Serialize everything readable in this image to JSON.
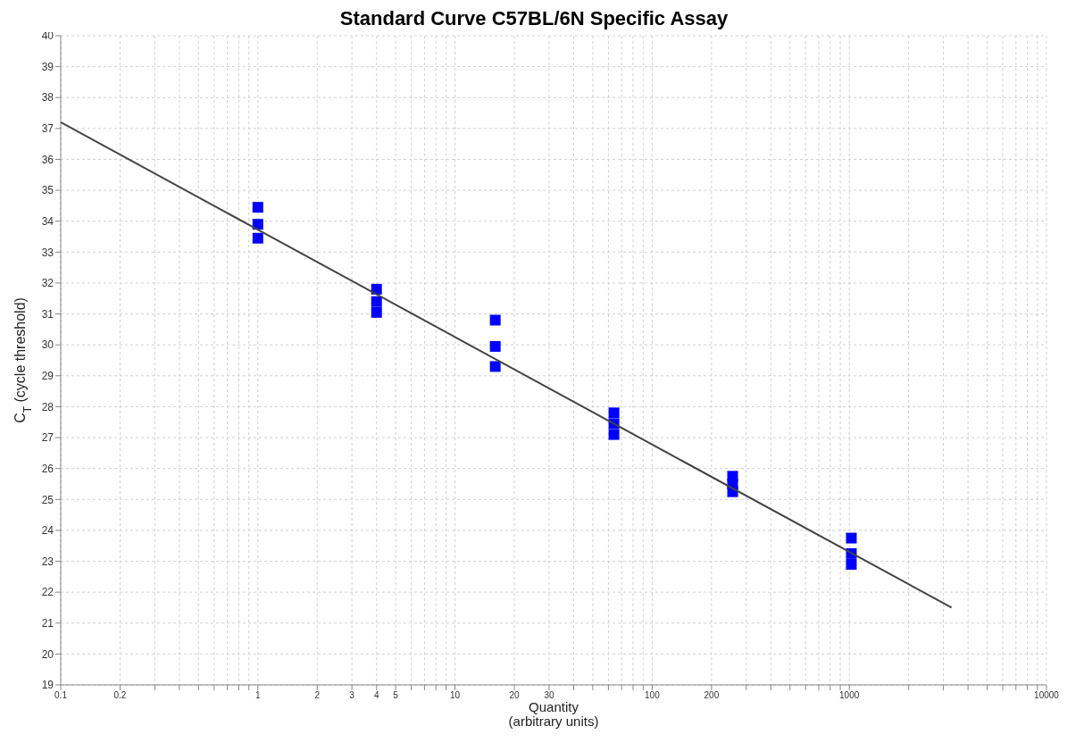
{
  "chart_data": {
    "type": "scatter",
    "title": "Standard Curve C57BL/6N Specific Assay",
    "xlabel": "Quantity\n(arbitrary units)",
    "ylabel": "C$_{T}$ (cycle threshold)",
    "log": "x",
    "grid": true,
    "marker": "square",
    "xlim": [
      0.1,
      10000
    ],
    "ylim": [
      19,
      40
    ],
    "xticks": [
      0.1,
      0.2,
      {
        "value": 0.3,
        "label": null
      },
      {
        "value": 0.4,
        "label": null
      },
      {
        "value": 0.5,
        "label": null
      },
      {
        "value": 0.6,
        "label": null
      },
      {
        "value": 0.7,
        "label": null
      },
      {
        "value": 0.8,
        "label": null
      },
      {
        "value": 0.9,
        "label": null
      },
      1,
      2,
      3,
      4,
      5,
      {
        "value": 6,
        "label": null
      },
      {
        "value": 7,
        "label": null
      },
      {
        "value": 8,
        "label": null
      },
      {
        "value": 9,
        "label": null
      },
      10,
      20,
      30,
      {
        "value": 40,
        "label": null
      },
      {
        "value": 50,
        "label": null
      },
      {
        "value": 60,
        "label": null
      },
      {
        "value": 70,
        "label": null
      },
      {
        "value": 80,
        "label": null
      },
      {
        "value": 90,
        "label": null
      },
      100,
      200,
      {
        "value": 300,
        "label": null
      },
      {
        "value": 400,
        "label": null
      },
      {
        "value": 500,
        "label": null
      },
      {
        "value": 600,
        "label": null
      },
      {
        "value": 700,
        "label": null
      },
      {
        "value": 800,
        "label": null
      },
      {
        "value": 900,
        "label": null
      },
      1000,
      {
        "value": 2000,
        "label": null
      },
      {
        "value": 3000,
        "label": null
      },
      {
        "value": 4000,
        "label": null
      },
      {
        "value": 5000,
        "label": null
      },
      {
        "value": 6000,
        "label": null
      },
      {
        "value": 7000,
        "label": null
      },
      {
        "value": 8000,
        "label": null
      },
      {
        "value": 9000,
        "label": null
      },
      10000
    ],
    "yticks": [
      19,
      20,
      21,
      22,
      23,
      24,
      25,
      26,
      27,
      28,
      29,
      30,
      31,
      32,
      33,
      34,
      35,
      36,
      37,
      38,
      39,
      40
    ],
    "series": [
      {
        "color": "#0000ff",
        "x": [
          1,
          1,
          1,
          4,
          4,
          4,
          16,
          16,
          16,
          64,
          64,
          64,
          256,
          256,
          256,
          1024,
          1024,
          1024
        ],
        "values": [
          34.45,
          33.9,
          33.45,
          31.8,
          31.4,
          31.05,
          30.8,
          29.95,
          29.3,
          27.8,
          27.45,
          27.1,
          25.75,
          25.5,
          25.25,
          23.75,
          23.25,
          22.9
        ]
      },
      {
        "type": "line",
        "color": "#444444",
        "marker": "none",
        "x": [
          0.1,
          3300
        ],
        "values": [
          37.2,
          21.5
        ]
      }
    ]
  }
}
